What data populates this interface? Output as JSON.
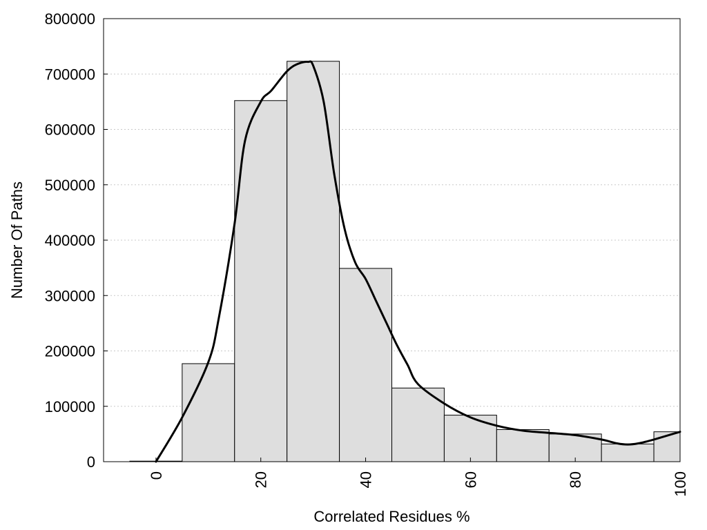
{
  "chart_data": {
    "type": "bar",
    "xlabel": "Correlated Residues %",
    "ylabel": "Number Of Paths",
    "xlim": [
      -10,
      100
    ],
    "ylim": [
      0,
      800000
    ],
    "grid": true,
    "x_ticks": [
      0,
      20,
      40,
      60,
      80,
      100
    ],
    "y_ticks": [
      0,
      100000,
      200000,
      300000,
      400000,
      500000,
      600000,
      700000,
      800000
    ],
    "x_tick_labels": [
      "0",
      "20",
      "40",
      "60",
      "80",
      "100"
    ],
    "y_tick_labels": [
      "0",
      "100000",
      "200000",
      "300000",
      "400000",
      "500000",
      "600000",
      "700000",
      "800000"
    ],
    "bars": {
      "bin_width": 10,
      "centers": [
        0,
        10,
        20,
        30,
        40,
        50,
        60,
        70,
        80,
        90,
        100
      ],
      "values": [
        1000,
        177000,
        652000,
        723000,
        349000,
        133000,
        84000,
        58000,
        50000,
        32000,
        54000
      ]
    },
    "curve": {
      "x": [
        0,
        5,
        10,
        12,
        15,
        17,
        20,
        22,
        25,
        27,
        29,
        30,
        32,
        34,
        36,
        38,
        40,
        42,
        44,
        46,
        48,
        50,
        55,
        60,
        65,
        70,
        75,
        80,
        85,
        88,
        90,
        92,
        95,
        100
      ],
      "y": [
        0,
        80000,
        180000,
        260000,
        430000,
        580000,
        650000,
        670000,
        705000,
        718000,
        722000,
        715000,
        650000,
        520000,
        420000,
        360000,
        330000,
        290000,
        250000,
        210000,
        175000,
        140000,
        105000,
        80000,
        65000,
        56000,
        52000,
        48000,
        40000,
        33000,
        31000,
        33000,
        40000,
        54000
      ]
    }
  }
}
